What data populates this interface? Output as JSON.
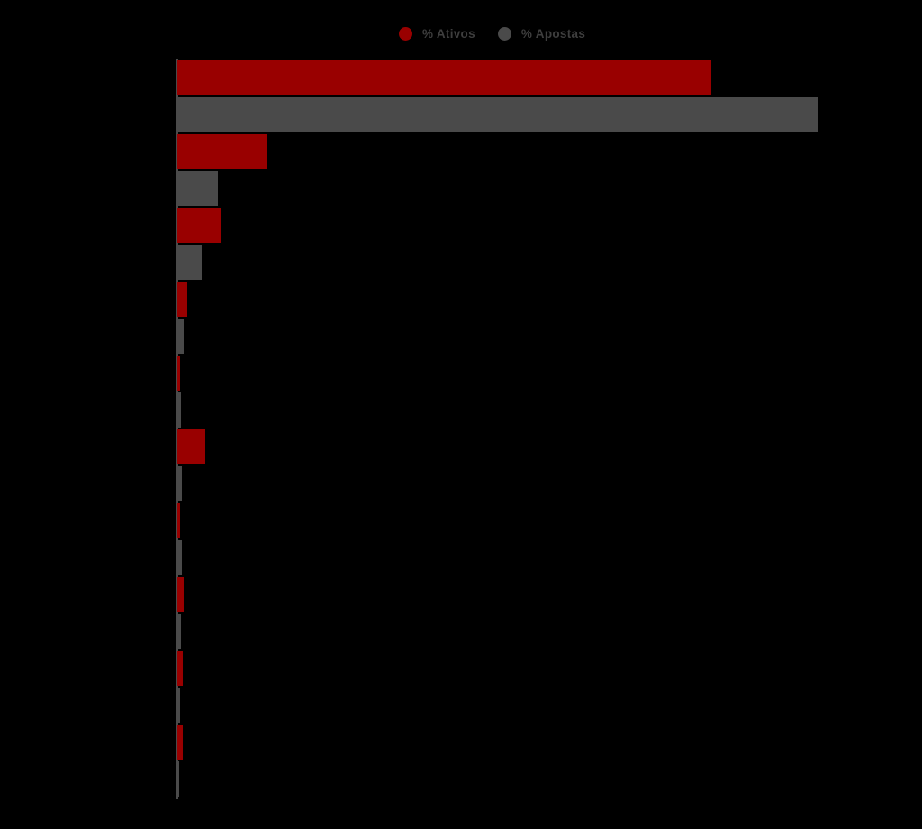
{
  "chart_data": {
    "type": "bar",
    "orientation": "horizontal",
    "title": "",
    "categories": [
      "",
      "",
      "",
      "",
      "",
      "",
      "",
      "",
      "",
      ""
    ],
    "series": [
      {
        "name": "% Ativos",
        "color": "#990000",
        "values": [
          73.1,
          12.3,
          5.9,
          1.4,
          0.4,
          3.8,
          0.4,
          0.9,
          0.7,
          0.7
        ]
      },
      {
        "name": "% Apostas",
        "color": "#4a4a4a",
        "values": [
          87.9,
          5.5,
          3.3,
          0.9,
          0.5,
          0.6,
          0.6,
          0.5,
          0.4,
          0.2
        ]
      }
    ],
    "xlim": [
      0,
      100
    ],
    "grid": false,
    "legend_position": "top-center",
    "axis_labels_visible": false,
    "category_labels_visible": false
  },
  "legend": {
    "items": [
      {
        "label": "% Ativos",
        "color": "#990000"
      },
      {
        "label": "% Apostas",
        "color": "#4a4a4a"
      }
    ]
  },
  "colors": {
    "background": "#000000",
    "axis_line": "#4a4a4a",
    "legend_text": "#3e3e3e"
  }
}
